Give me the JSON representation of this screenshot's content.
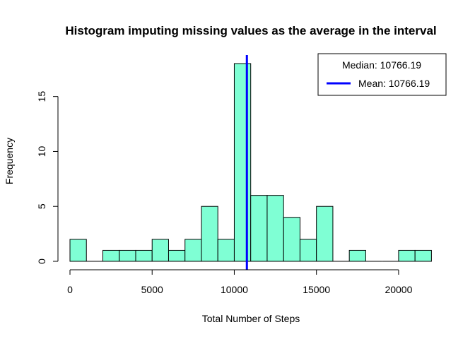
{
  "chart_data": {
    "type": "bar",
    "subtype": "histogram",
    "title": "Histogram imputing missing values as the average in the interval",
    "xlabel": "Total Number of Steps",
    "ylabel": "Frequency",
    "bin_width": 1000,
    "bins": [
      {
        "start": 0,
        "end": 1000,
        "count": 2
      },
      {
        "start": 1000,
        "end": 2000,
        "count": 0
      },
      {
        "start": 2000,
        "end": 3000,
        "count": 1
      },
      {
        "start": 3000,
        "end": 4000,
        "count": 1
      },
      {
        "start": 4000,
        "end": 5000,
        "count": 1
      },
      {
        "start": 5000,
        "end": 6000,
        "count": 2
      },
      {
        "start": 6000,
        "end": 7000,
        "count": 1
      },
      {
        "start": 7000,
        "end": 8000,
        "count": 2
      },
      {
        "start": 8000,
        "end": 9000,
        "count": 5
      },
      {
        "start": 9000,
        "end": 10000,
        "count": 2
      },
      {
        "start": 10000,
        "end": 11000,
        "count": 18
      },
      {
        "start": 11000,
        "end": 12000,
        "count": 6
      },
      {
        "start": 12000,
        "end": 13000,
        "count": 6
      },
      {
        "start": 13000,
        "end": 14000,
        "count": 4
      },
      {
        "start": 14000,
        "end": 15000,
        "count": 2
      },
      {
        "start": 15000,
        "end": 16000,
        "count": 5
      },
      {
        "start": 16000,
        "end": 17000,
        "count": 0
      },
      {
        "start": 17000,
        "end": 18000,
        "count": 1
      },
      {
        "start": 18000,
        "end": 19000,
        "count": 0
      },
      {
        "start": 19000,
        "end": 20000,
        "count": 0
      },
      {
        "start": 20000,
        "end": 21000,
        "count": 1
      },
      {
        "start": 21000,
        "end": 22000,
        "count": 1
      }
    ],
    "xlim": [
      0,
      22000
    ],
    "ylim": [
      0,
      18
    ],
    "x_ticks": [
      0,
      5000,
      10000,
      15000,
      20000
    ],
    "x_tick_labels": [
      "0",
      "5000",
      "10000",
      "15000",
      "20000"
    ],
    "y_ticks": [
      0,
      5,
      10,
      15
    ],
    "y_tick_labels": [
      "0",
      "5",
      "10",
      "15"
    ],
    "bar_color": "#7fffd4",
    "reference_line": {
      "value": 10766.19,
      "color": "#0000ff",
      "label": "Mean"
    },
    "legend": {
      "position": "top-right",
      "entries": [
        {
          "text": "Median:  10766.19",
          "line": false
        },
        {
          "text": "Mean:  10766.19",
          "line": true,
          "color": "#0000ff"
        }
      ]
    },
    "grid": false
  }
}
